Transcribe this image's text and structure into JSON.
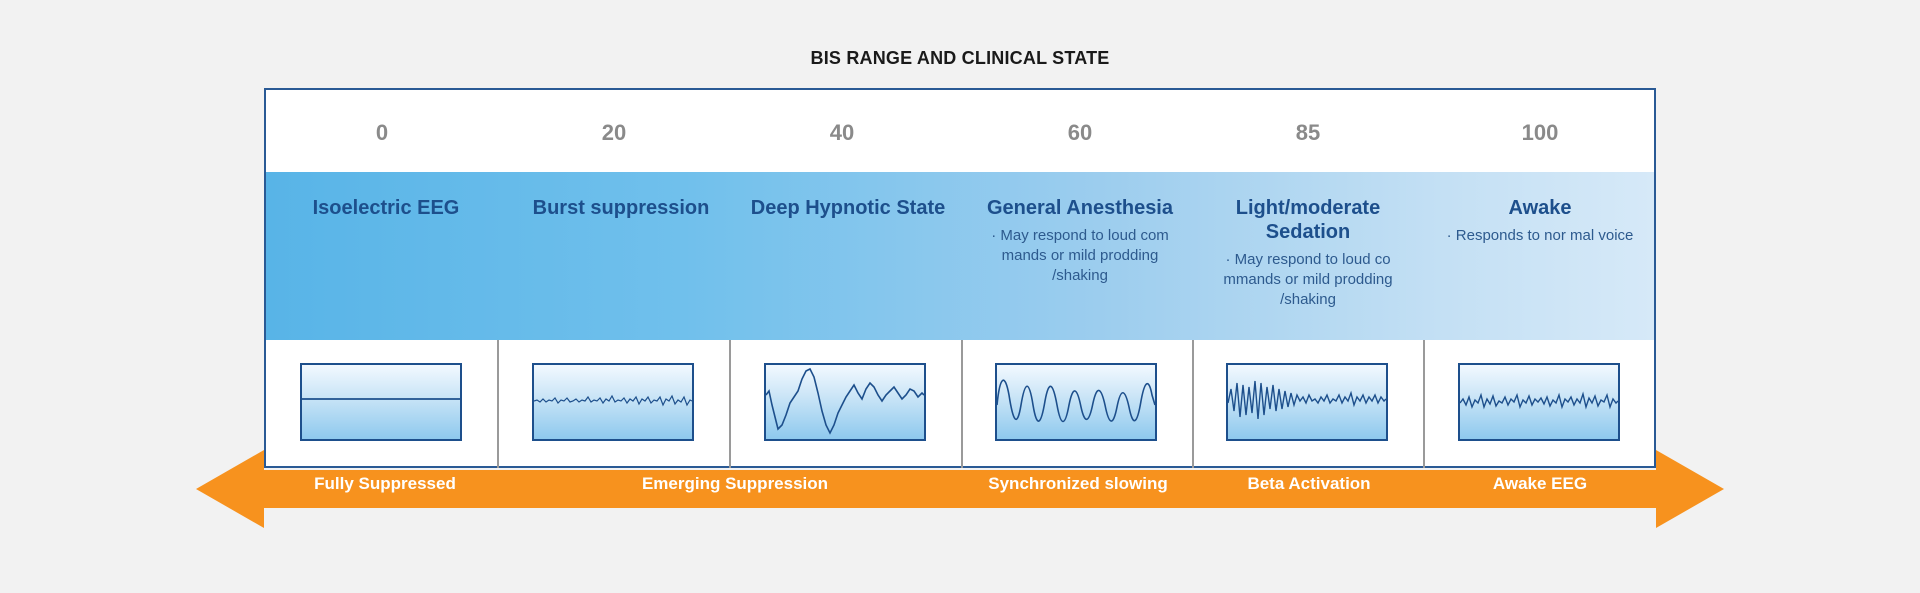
{
  "title": "BIS RANGE AND CLINICAL STATE",
  "scale_values": [
    "0",
    "20",
    "40",
    "60",
    "85",
    "100"
  ],
  "states": [
    {
      "name": "Isoelectric EEG",
      "description": ""
    },
    {
      "name": "Burst suppression",
      "description": ""
    },
    {
      "name": "Deep Hypnotic State",
      "description": ""
    },
    {
      "name": "General Anesthesia",
      "description": "· May respond to loud com mands  or mild prodding /shaking"
    },
    {
      "name": "Light/moderate Sedation",
      "description": "· May respond to loud co mmands  or mild prodding /shaking"
    },
    {
      "name": "Awake",
      "description": "· Responds to nor mal voice"
    }
  ],
  "eeg_categories": [
    "Fully Suppressed",
    "Emerging Suppression",
    "Synchronized  slowing",
    "Beta Activation",
    "Awake EEG"
  ],
  "colors": {
    "frame_border": "#2a5a95",
    "band_start": "#58b4e7",
    "band_end": "#d6e9f8",
    "state_text": "#1d4f8c",
    "arrow": "#f7921e",
    "scale_text": "#8a8a8a"
  }
}
